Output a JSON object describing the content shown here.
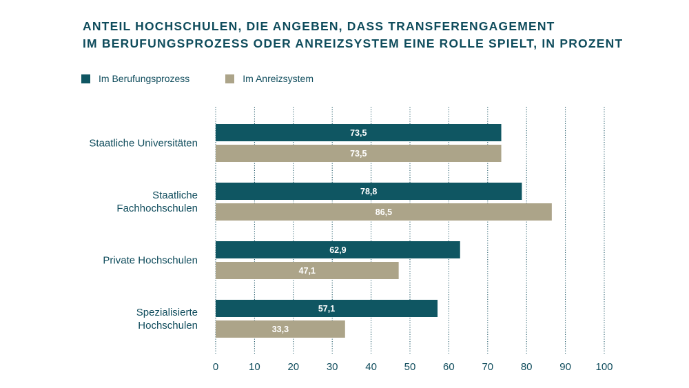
{
  "title_lines": [
    "ANTEIL HOCHSCHULEN, DIE ANGEBEN, DASS TRANSFERENGAGEMENT",
    "IM BERUFUNGSPROZESS ODER ANREIZSYSTEM EINE ROLLE SPIELT, IN PROZENT"
  ],
  "colors": {
    "primary": "#0f5662",
    "secondary": "#aca489",
    "text": "#0f4c5c",
    "grid": "#0f4c5c"
  },
  "chart_data": {
    "type": "bar",
    "orientation": "horizontal",
    "categories": [
      [
        "Staatliche Universitäten"
      ],
      [
        "Staatliche",
        "Fachhochschulen"
      ],
      [
        "Private Hochschulen"
      ],
      [
        "Spezialisierte",
        "Hochschulen"
      ]
    ],
    "series": [
      {
        "name": "Im Berufungsprozess",
        "color": "#0f5662",
        "values": [
          73.5,
          78.8,
          62.9,
          57.1
        ],
        "labels": [
          "73,5",
          "78,8",
          "62,9",
          "57,1"
        ]
      },
      {
        "name": "Im Anreizsystem",
        "color": "#aca489",
        "values": [
          73.5,
          86.5,
          47.1,
          33.3
        ],
        "labels": [
          "73,5",
          "86,5",
          "47,1",
          "33,3"
        ]
      }
    ],
    "xlim": [
      0,
      100
    ],
    "xticks": [
      0,
      10,
      20,
      30,
      40,
      50,
      60,
      70,
      80,
      90,
      100
    ],
    "grid": "vertical-dotted",
    "legend_placement": "top-left"
  }
}
